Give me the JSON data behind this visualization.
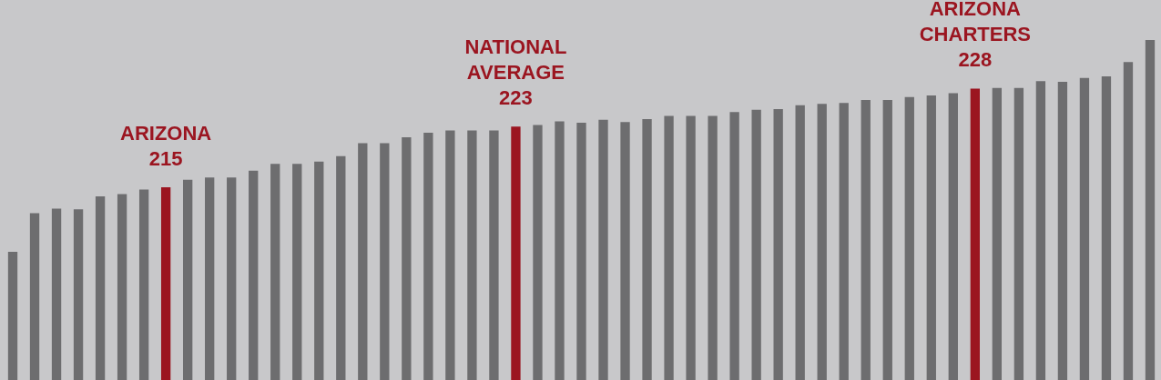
{
  "chart_data": {
    "type": "bar",
    "categories": [
      null,
      null,
      null,
      null,
      null,
      null,
      null,
      null,
      null,
      null,
      null,
      null,
      null,
      null,
      null,
      null,
      null,
      null,
      null,
      null,
      null,
      null,
      null,
      null,
      null,
      null,
      null,
      null,
      null,
      null,
      null,
      null,
      null,
      null,
      null,
      null,
      null,
      null,
      null,
      null,
      null,
      null,
      null,
      null,
      null,
      null,
      null,
      null,
      null,
      null,
      null,
      null,
      null
    ],
    "values": [
      206.5,
      211.6,
      212.2,
      212.1,
      213.8,
      214.1,
      214.7,
      215,
      216.0,
      216.3,
      216.3,
      217.2,
      218.1,
      218.1,
      218.4,
      219.1,
      220.8,
      220.8,
      221.6,
      222.2,
      222.5,
      222.5,
      222.5,
      223,
      223.2,
      223.7,
      223.5,
      223.9,
      223.6,
      224.0,
      224.4,
      224.4,
      224.4,
      224.9,
      225.2,
      225.3,
      225.8,
      226.0,
      226.1,
      226.5,
      226.5,
      226.9,
      227.1,
      227.4,
      228,
      228.1,
      228.1,
      229.0,
      228.9,
      229.4,
      229.6,
      231.5,
      234.4
    ],
    "colors": [
      "#6d6d6f",
      "#6d6d6f",
      "#6d6d6f",
      "#6d6d6f",
      "#6d6d6f",
      "#6d6d6f",
      "#6d6d6f",
      "#9b1520",
      "#6d6d6f",
      "#6d6d6f",
      "#6d6d6f",
      "#6d6d6f",
      "#6d6d6f",
      "#6d6d6f",
      "#6d6d6f",
      "#6d6d6f",
      "#6d6d6f",
      "#6d6d6f",
      "#6d6d6f",
      "#6d6d6f",
      "#6d6d6f",
      "#6d6d6f",
      "#6d6d6f",
      "#9b1520",
      "#6d6d6f",
      "#6d6d6f",
      "#6d6d6f",
      "#6d6d6f",
      "#6d6d6f",
      "#6d6d6f",
      "#6d6d6f",
      "#6d6d6f",
      "#6d6d6f",
      "#6d6d6f",
      "#6d6d6f",
      "#6d6d6f",
      "#6d6d6f",
      "#6d6d6f",
      "#6d6d6f",
      "#6d6d6f",
      "#6d6d6f",
      "#6d6d6f",
      "#6d6d6f",
      "#6d6d6f",
      "#9b1520",
      "#6d6d6f",
      "#6d6d6f",
      "#6d6d6f",
      "#6d6d6f",
      "#6d6d6f",
      "#6d6d6f",
      "#6d6d6f",
      "#6d6d6f"
    ],
    "value_labels": [
      null,
      null,
      null,
      null,
      null,
      null,
      null,
      "ARIZONA\n215",
      null,
      null,
      null,
      null,
      null,
      null,
      null,
      null,
      null,
      null,
      null,
      null,
      null,
      null,
      null,
      "NATIONAL\nAVERAGE\n223",
      null,
      null,
      null,
      null,
      null,
      null,
      null,
      null,
      null,
      null,
      null,
      null,
      null,
      null,
      null,
      null,
      null,
      null,
      null,
      null,
      "ARIZONA\nCHARTERS\n228",
      null,
      null,
      null,
      null,
      null,
      null,
      null,
      null
    ]
  }
}
